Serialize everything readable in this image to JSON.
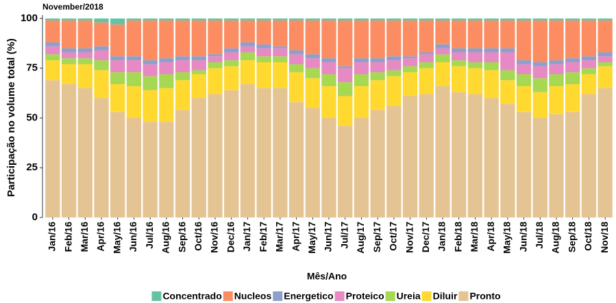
{
  "chart_data": {
    "type": "stacked_bar",
    "subtitle": "November/2018",
    "x_label": "Mês/Ano",
    "y_label": "Participação no volume total (%)",
    "categories": [
      "Jan/16",
      "Feb/16",
      "Mar/16",
      "Apr/16",
      "May/16",
      "Jun/16",
      "Jul/16",
      "Aug/16",
      "Sep/16",
      "Oct/16",
      "Nov/16",
      "Dec/16",
      "Jan/17",
      "Feb/17",
      "Mar/17",
      "Apr/17",
      "May/17",
      "Jun/17",
      "Jul/17",
      "Aug/17",
      "Sep/17",
      "Oct/17",
      "Nov/17",
      "Dec/17",
      "Jan/18",
      "Feb/18",
      "Mar/18",
      "Apr/18",
      "May/18",
      "Jun/18",
      "Jul/18",
      "Aug/18",
      "Sep/18",
      "Oct/18",
      "Nov/18"
    ],
    "series": [
      {
        "name": "Concentrado",
        "color": "#66c2a5",
        "values": [
          1,
          1,
          1,
          2,
          3,
          1,
          1,
          1,
          1,
          1,
          1,
          1,
          1,
          1,
          1,
          1,
          1,
          1,
          1,
          1,
          1,
          1,
          1,
          1,
          1,
          1,
          1,
          1,
          1,
          1,
          1,
          1,
          1,
          1,
          1
        ]
      },
      {
        "name": "Nucleos",
        "color": "#fc8d62",
        "values": [
          11,
          14,
          14,
          12,
          16,
          18,
          20,
          19,
          18,
          18,
          17,
          14,
          11,
          12,
          13,
          15,
          17,
          19,
          23,
          19,
          19,
          18,
          18,
          16,
          12,
          14,
          14,
          14,
          14,
          20,
          21,
          20,
          19,
          18,
          16
        ]
      },
      {
        "name": "Energetico",
        "color": "#8da0cb",
        "values": [
          2,
          2,
          2,
          2,
          2,
          2,
          2,
          2,
          2,
          2,
          1,
          2,
          2,
          2,
          1,
          2,
          2,
          2,
          1,
          2,
          2,
          2,
          1,
          1,
          2,
          2,
          2,
          2,
          2,
          2,
          2,
          2,
          2,
          2,
          2
        ]
      },
      {
        "name": "Proteico",
        "color": "#e78ac3",
        "values": [
          4,
          3,
          3,
          5,
          6,
          6,
          6,
          6,
          6,
          5,
          3,
          4,
          3,
          4,
          4,
          5,
          5,
          6,
          7,
          6,
          5,
          5,
          4,
          4,
          3,
          4,
          5,
          5,
          9,
          5,
          6,
          5,
          5,
          4,
          3
        ]
      },
      {
        "name": "Ureia",
        "color": "#a6d854",
        "values": [
          3,
          3,
          3,
          5,
          6,
          7,
          7,
          7,
          4,
          2,
          3,
          3,
          4,
          3,
          3,
          4,
          5,
          6,
          7,
          6,
          4,
          3,
          3,
          3,
          4,
          3,
          3,
          4,
          5,
          6,
          7,
          6,
          6,
          3,
          2
        ]
      },
      {
        "name": "Diluir",
        "color": "#ffd92f",
        "values": [
          10,
          10,
          12,
          14,
          14,
          16,
          16,
          17,
          15,
          12,
          13,
          12,
          12,
          13,
          13,
          15,
          15,
          16,
          15,
          16,
          15,
          15,
          12,
          13,
          12,
          13,
          13,
          14,
          12,
          13,
          13,
          14,
          14,
          10,
          11
        ]
      },
      {
        "name": "Pronto",
        "color": "#e5c494",
        "values": [
          69,
          67,
          65,
          60,
          53,
          50,
          48,
          48,
          54,
          60,
          62,
          64,
          67,
          65,
          65,
          58,
          55,
          50,
          46,
          50,
          54,
          56,
          61,
          62,
          66,
          63,
          62,
          60,
          57,
          53,
          50,
          52,
          53,
          62,
          65
        ]
      }
    ],
    "ylim": [
      0,
      100
    ],
    "yticks": [
      0,
      25,
      50,
      75,
      100
    ],
    "grid": false,
    "legend": "bottom"
  }
}
